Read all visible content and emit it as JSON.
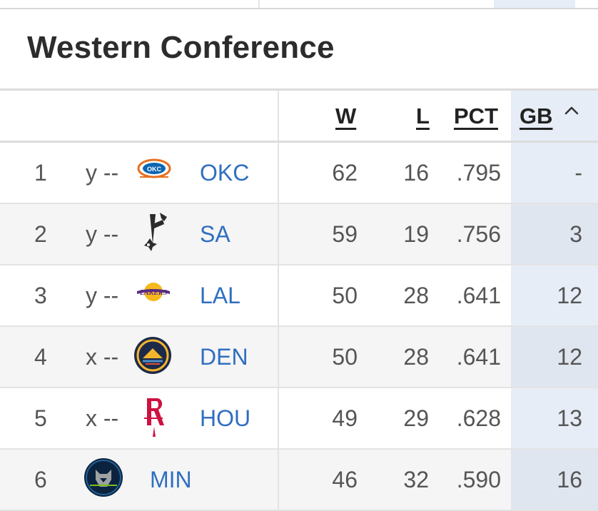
{
  "title": "Western Conference",
  "columns": {
    "w": "W",
    "l": "L",
    "pct": "PCT",
    "gb": "GB"
  },
  "rows": [
    {
      "rank": "1",
      "clinch": "y --",
      "team": "OKC",
      "logo": "okc-logo-icon",
      "w": "62",
      "l": "16",
      "pct": ".795",
      "gb": "-"
    },
    {
      "rank": "2",
      "clinch": "y --",
      "team": "SA",
      "logo": "spurs-logo-icon",
      "w": "59",
      "l": "19",
      "pct": ".756",
      "gb": "3"
    },
    {
      "rank": "3",
      "clinch": "y --",
      "team": "LAL",
      "logo": "lakers-logo-icon",
      "w": "50",
      "l": "28",
      "pct": ".641",
      "gb": "12"
    },
    {
      "rank": "4",
      "clinch": "x --",
      "team": "DEN",
      "logo": "nuggets-logo-icon",
      "w": "50",
      "l": "28",
      "pct": ".641",
      "gb": "12"
    },
    {
      "rank": "5",
      "clinch": "x --",
      "team": "HOU",
      "logo": "rockets-logo-icon",
      "w": "49",
      "l": "29",
      "pct": ".628",
      "gb": "13"
    },
    {
      "rank": "6",
      "clinch": "",
      "team": "MIN",
      "logo": "timberwolves-logo-icon",
      "w": "46",
      "l": "32",
      "pct": ".590",
      "gb": "16"
    }
  ],
  "colors": {
    "link": "#2f6fc0",
    "sorted_column_bg": "#e6edf6",
    "text": "#2b2b2b"
  },
  "sort": {
    "column": "GB",
    "direction": "ascending",
    "icon": "chevron-up-icon"
  }
}
